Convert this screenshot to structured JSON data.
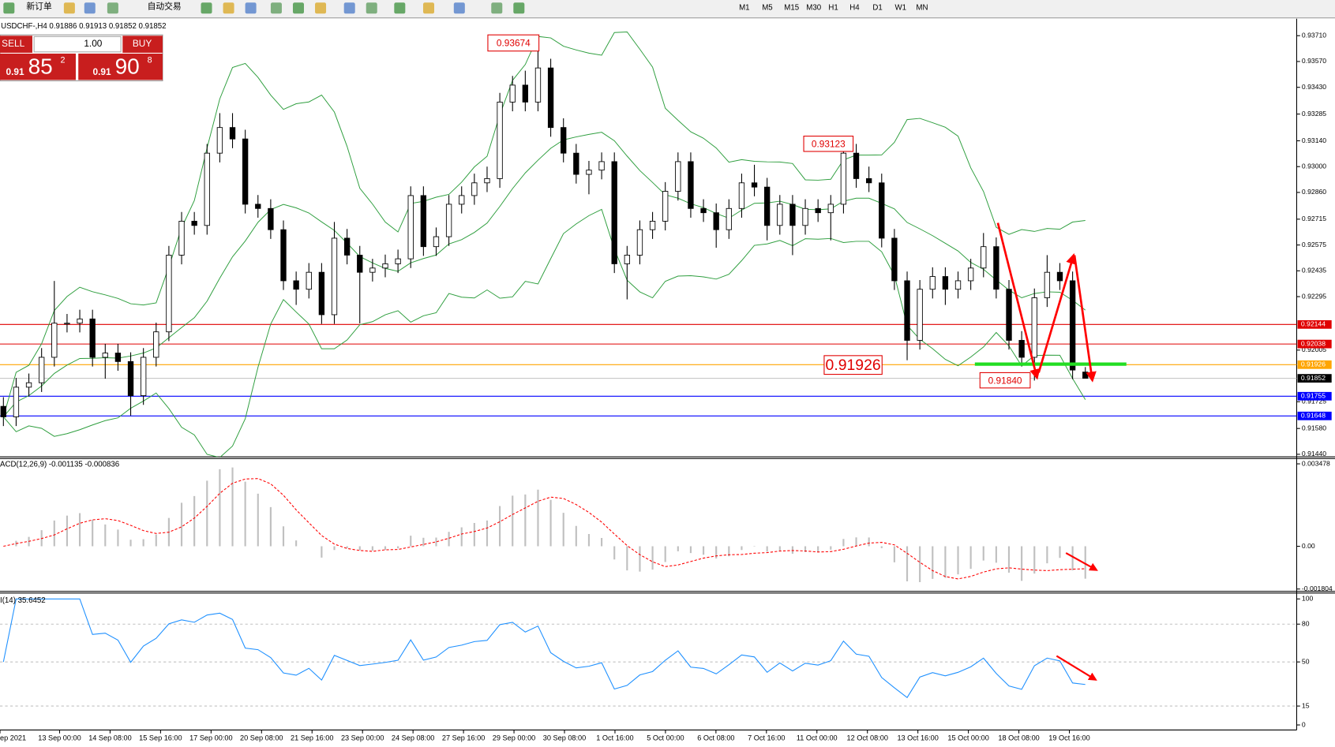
{
  "toolbar": {
    "new_order": "新订单",
    "auto_trading": "自动交易",
    "timeframes": [
      "M1",
      "M5",
      "M15",
      "M30",
      "H1",
      "H4",
      "D1",
      "W1",
      "MN"
    ]
  },
  "trade_panel": {
    "sell": "SELL",
    "lot": "1.00",
    "buy": "BUY",
    "bid_prefix": "0.91",
    "bid_big": "85",
    "bid_small": "2",
    "ask_prefix": "0.91",
    "ask_big": "90",
    "ask_small": "8"
  },
  "chart_data": {
    "type": "candlestick",
    "title": "USDCHF-,H4  0.91886 0.91913 0.91852 0.91852",
    "candles": [
      [
        0.917,
        0.9175,
        0.91593,
        0.91643
      ],
      [
        0.91643,
        0.91854,
        0.91593,
        0.91804
      ],
      [
        0.91804,
        0.91878,
        0.91754,
        0.91828
      ],
      [
        0.91828,
        0.92016,
        0.91778,
        0.91966
      ],
      [
        0.91966,
        0.9238,
        0.91916,
        0.92151
      ],
      [
        0.92151,
        0.92201,
        0.92101,
        0.92151
      ],
      [
        0.92151,
        0.92224,
        0.92101,
        0.92174
      ],
      [
        0.92174,
        0.92224,
        0.91916,
        0.91966
      ],
      [
        0.91966,
        0.92039,
        0.9185,
        0.91989
      ],
      [
        0.91989,
        0.92039,
        0.91893,
        0.91943
      ],
      [
        0.91943,
        0.91993,
        0.9165,
        0.91758
      ],
      [
        0.91758,
        0.92016,
        0.91708,
        0.91966
      ],
      [
        0.91966,
        0.92154,
        0.91916,
        0.92104
      ],
      [
        0.92104,
        0.9257,
        0.92054,
        0.9252
      ],
      [
        0.9252,
        0.92754,
        0.9247,
        0.92704
      ],
      [
        0.92704,
        0.92754,
        0.92631,
        0.92681
      ],
      [
        0.92681,
        0.93123,
        0.92631,
        0.93073
      ],
      [
        0.93073,
        0.9329,
        0.93023,
        0.93212
      ],
      [
        0.93212,
        0.9329,
        0.931,
        0.9315
      ],
      [
        0.9315,
        0.932,
        0.92746,
        0.92796
      ],
      [
        0.92796,
        0.92846,
        0.92723,
        0.92773
      ],
      [
        0.92773,
        0.92823,
        0.92608,
        0.92658
      ],
      [
        0.92658,
        0.92708,
        0.92331,
        0.92381
      ],
      [
        0.92381,
        0.92431,
        0.9225,
        0.92335
      ],
      [
        0.92335,
        0.92477,
        0.92285,
        0.92427
      ],
      [
        0.92427,
        0.92477,
        0.92147,
        0.92197
      ],
      [
        0.92197,
        0.927,
        0.92147,
        0.92612
      ],
      [
        0.92612,
        0.92662,
        0.9247,
        0.9252
      ],
      [
        0.9252,
        0.9257,
        0.9215,
        0.92427
      ],
      [
        0.92427,
        0.925,
        0.92377,
        0.9245
      ],
      [
        0.9245,
        0.92523,
        0.924,
        0.92473
      ],
      [
        0.92473,
        0.9255,
        0.92423,
        0.925
      ],
      [
        0.925,
        0.92893,
        0.9245,
        0.92843
      ],
      [
        0.92843,
        0.92893,
        0.92516,
        0.92566
      ],
      [
        0.92566,
        0.9267,
        0.92516,
        0.9262
      ],
      [
        0.9262,
        0.92846,
        0.9257,
        0.92796
      ],
      [
        0.92796,
        0.92893,
        0.92746,
        0.92843
      ],
      [
        0.92843,
        0.92962,
        0.92793,
        0.92912
      ],
      [
        0.92912,
        0.93,
        0.92862,
        0.92935
      ],
      [
        0.92935,
        0.934,
        0.92885,
        0.9335
      ],
      [
        0.9335,
        0.93492,
        0.933,
        0.93442
      ],
      [
        0.93442,
        0.9352,
        0.933,
        0.9335
      ],
      [
        0.9335,
        0.93674,
        0.933,
        0.93535
      ],
      [
        0.93535,
        0.93585,
        0.93162,
        0.93212
      ],
      [
        0.93212,
        0.93262,
        0.93023,
        0.93073
      ],
      [
        0.93073,
        0.93123,
        0.92908,
        0.92958
      ],
      [
        0.92958,
        0.93031,
        0.9285,
        0.92981
      ],
      [
        0.92981,
        0.93077,
        0.92931,
        0.93027
      ],
      [
        0.93027,
        0.93077,
        0.92423,
        0.92473
      ],
      [
        0.92473,
        0.9257,
        0.9228,
        0.9252
      ],
      [
        0.9252,
        0.92708,
        0.9247,
        0.92658
      ],
      [
        0.92658,
        0.92754,
        0.92608,
        0.92704
      ],
      [
        0.92704,
        0.92916,
        0.92654,
        0.92866
      ],
      [
        0.92866,
        0.93077,
        0.92816,
        0.93027
      ],
      [
        0.93027,
        0.93077,
        0.92723,
        0.92773
      ],
      [
        0.92773,
        0.92823,
        0.927,
        0.9275
      ],
      [
        0.9275,
        0.928,
        0.9256,
        0.92658
      ],
      [
        0.92658,
        0.92823,
        0.92608,
        0.92773
      ],
      [
        0.92773,
        0.92962,
        0.92723,
        0.92912
      ],
      [
        0.92912,
        0.9301,
        0.92839,
        0.92889
      ],
      [
        0.92889,
        0.92939,
        0.926,
        0.92681
      ],
      [
        0.92681,
        0.92846,
        0.92631,
        0.92796
      ],
      [
        0.92796,
        0.92846,
        0.9252,
        0.92681
      ],
      [
        0.92681,
        0.92823,
        0.92631,
        0.92773
      ],
      [
        0.92773,
        0.92823,
        0.927,
        0.9275
      ],
      [
        0.9275,
        0.92846,
        0.926,
        0.92796
      ],
      [
        0.92796,
        0.931,
        0.92746,
        0.93073
      ],
      [
        0.93073,
        0.93123,
        0.92885,
        0.92935
      ],
      [
        0.92935,
        0.93,
        0.92862,
        0.92912
      ],
      [
        0.92912,
        0.92962,
        0.92562,
        0.92612
      ],
      [
        0.92612,
        0.92662,
        0.92331,
        0.92381
      ],
      [
        0.92381,
        0.92431,
        0.9195,
        0.92058
      ],
      [
        0.92058,
        0.92385,
        0.92008,
        0.92335
      ],
      [
        0.92335,
        0.92454,
        0.92285,
        0.92404
      ],
      [
        0.92404,
        0.92454,
        0.9225,
        0.92335
      ],
      [
        0.92335,
        0.92431,
        0.92285,
        0.92381
      ],
      [
        0.92381,
        0.925,
        0.92331,
        0.9245
      ],
      [
        0.9245,
        0.9264,
        0.924,
        0.92566
      ],
      [
        0.92566,
        0.92616,
        0.92285,
        0.92335
      ],
      [
        0.92335,
        0.92385,
        0.92008,
        0.92058
      ],
      [
        0.92058,
        0.92108,
        0.91916,
        0.91966
      ],
      [
        0.91966,
        0.92339,
        0.9184,
        0.92289
      ],
      [
        0.92289,
        0.9252,
        0.92239,
        0.92427
      ],
      [
        0.92427,
        0.92477,
        0.92331,
        0.92381
      ],
      [
        0.92381,
        0.92431,
        0.91847,
        0.91897
      ],
      [
        0.91886,
        0.91913,
        0.91852,
        0.91852
      ]
    ],
    "ylim": [
      0.91426,
      0.93802
    ],
    "yticks": [
      {
        "value": 0.9371,
        "label": "0.93710"
      },
      {
        "value": 0.9357,
        "label": "0.93570"
      },
      {
        "value": 0.9343,
        "label": "0.93430"
      },
      0.93285,
      {
        "value": 0.9314,
        "label": "0.93140"
      },
      {
        "value": 0.93,
        "label": "0.93000"
      },
      {
        "value": 0.9286,
        "label": "0.92860"
      },
      0.92715,
      0.92575,
      0.92435,
      0.92295,
      0.92005,
      0.91725,
      {
        "value": 0.9158,
        "label": "0.91580"
      },
      {
        "value": 0.9144,
        "label": "0.91440"
      }
    ],
    "hlines": [
      {
        "value": 0.92144,
        "color": "#e00000"
      },
      {
        "value": 0.92038,
        "color": "#e00000"
      },
      {
        "value": 0.91926,
        "color": "#ffa500"
      },
      {
        "value": 0.91852,
        "color": "#c0c0c0"
      },
      {
        "value": 0.91755,
        "color": "#0000ff"
      },
      {
        "value": 0.91648,
        "color": "#0000ff"
      }
    ],
    "annotations": [
      "0.93674",
      "0.93123",
      "0.91926",
      "0.91840"
    ],
    "band_color": "#2e9e3e",
    "time_labels": [
      "ep 2021",
      "13 Sep 00:00",
      "14 Sep 08:00",
      "15 Sep 16:00",
      "17 Sep 00:00",
      "20 Sep 08:00",
      "21 Sep 16:00",
      "23 Sep 00:00",
      "24 Sep 08:00",
      "27 Sep 16:00",
      "29 Sep 00:00",
      "30 Sep 08:00",
      "1 Oct 16:00",
      "5 Oct 00:00",
      "6 Oct 08:00",
      "7 Oct 16:00",
      "11 Oct 00:00",
      "12 Oct 08:00",
      "13 Oct 16:00",
      "15 Oct 00:00",
      "18 Oct 08:00",
      "19 Oct 16:00"
    ],
    "macd": {
      "title": "ACD(12,26,9) -0.001135 -0.000836",
      "ylim": [
        -0.0019,
        0.0037
      ],
      "yticks": [
        0.003478,
        {
          "value": 0,
          "label": "0.00"
        },
        -0.001804
      ],
      "color": "#c0c0c0",
      "signal_color": "#ff0000"
    },
    "rsi": {
      "title": "I(14) 35.6452",
      "ylim": [
        -4,
        104.7
      ],
      "yticks": [
        100,
        80,
        50,
        15,
        0
      ],
      "levels": [
        80,
        50,
        15
      ],
      "color": "#1e90ff"
    }
  }
}
